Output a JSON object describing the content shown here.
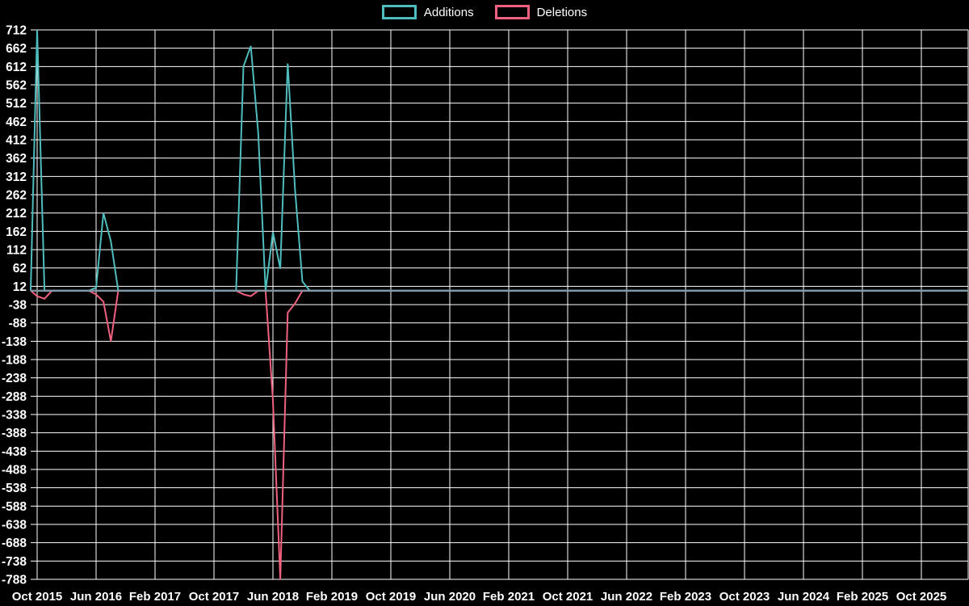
{
  "legend": {
    "items": [
      {
        "label": "Additions",
        "color": "#4fbcbd"
      },
      {
        "label": "Deletions",
        "color": "#f0607f"
      }
    ]
  },
  "chart_data": {
    "type": "line",
    "title": "",
    "background": "#000000",
    "grid_color": "#ffffff",
    "text_color": "#ffffff",
    "baseline_color": "#8498a8",
    "legend_position": "top-center",
    "grid": "on",
    "y_axis": {
      "min": -788,
      "max": 712,
      "step": 50,
      "tick_labels": [
        "712",
        "662",
        "612",
        "562",
        "512",
        "462",
        "412",
        "362",
        "312",
        "262",
        "212",
        "162",
        "112",
        "62",
        "12",
        "-38",
        "-88",
        "-138",
        "-188",
        "-238",
        "-288",
        "-338",
        "-388",
        "-438",
        "-488",
        "-538",
        "-588",
        "-638",
        "-688",
        "-738",
        "-788"
      ]
    },
    "x_axis": {
      "start_month": "2015-10",
      "months_per_tick": 8,
      "tick_labels": [
        "Oct 2015",
        "Jun 2016",
        "Feb 2017",
        "Oct 2017",
        "Jun 2018",
        "Feb 2019",
        "Oct 2019",
        "Jun 2020",
        "Feb 2021",
        "Oct 2021",
        "Jun 2022",
        "Feb 2023",
        "Oct 2023",
        "Jun 2024",
        "Feb 2025",
        "Oct 2025"
      ]
    },
    "series": [
      {
        "name": "Additions",
        "color": "#4fbcbd",
        "default_value": 0,
        "points": {
          "2015-10": 712,
          "2016-06": 8,
          "2016-07": 212,
          "2016-08": 135,
          "2018-02": 612,
          "2018-03": 668,
          "2018-04": 430,
          "2018-06": 160,
          "2018-07": 60,
          "2018-08": 620,
          "2018-09": 275,
          "2018-10": 25
        }
      },
      {
        "name": "Deletions",
        "color": "#f0607f",
        "default_value": 0,
        "points": {
          "2015-10": -15,
          "2015-11": -22,
          "2016-06": -10,
          "2016-07": -30,
          "2016-08": -138,
          "2018-02": -10,
          "2018-03": -15,
          "2018-06": -300,
          "2018-07": -788,
          "2018-08": -60,
          "2018-09": -35
        }
      }
    ]
  }
}
